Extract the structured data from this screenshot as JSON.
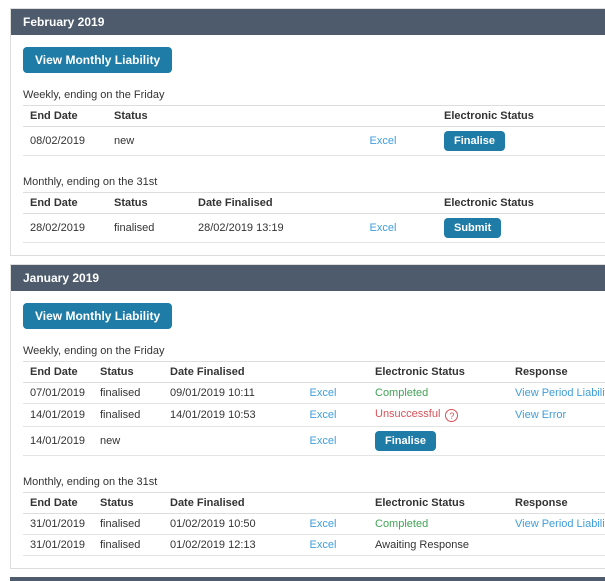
{
  "colors": {
    "header_bar": "#4d5b6c",
    "button": "#1e7ca6",
    "link": "#3f9edb",
    "success": "#42a356",
    "danger": "#d65158"
  },
  "sections": [
    {
      "title": "February 2019",
      "view_monthly_liability_label": "View Monthly Liability",
      "tables": [
        {
          "caption": "Weekly, ending on the Friday",
          "columns": [
            "End Date",
            "Status",
            "",
            "Electronic Status"
          ],
          "col_keys": [
            "end_date",
            "status",
            "excel",
            "electronic"
          ],
          "rows": [
            {
              "end_date": "08/02/2019",
              "status": "new",
              "excel": "Excel",
              "electronic": {
                "kind": "button",
                "label": "Finalise"
              }
            }
          ]
        },
        {
          "caption": "Monthly, ending on the 31st",
          "columns": [
            "End Date",
            "Status",
            "Date Finalised",
            "",
            "Electronic Status"
          ],
          "col_keys": [
            "end_date",
            "status",
            "date_finalised",
            "excel",
            "electronic"
          ],
          "rows": [
            {
              "end_date": "28/02/2019",
              "status": "finalised",
              "date_finalised": "28/02/2019 13:19",
              "excel": "Excel",
              "electronic": {
                "kind": "button",
                "label": "Submit"
              }
            }
          ]
        }
      ]
    },
    {
      "title": "January 2019",
      "view_monthly_liability_label": "View Monthly Liability",
      "tables": [
        {
          "caption": "Weekly, ending on the Friday",
          "columns": [
            "End Date",
            "Status",
            "Date Finalised",
            "",
            "Electronic Status",
            "Response"
          ],
          "col_keys": [
            "end_date",
            "status",
            "date_finalised",
            "excel",
            "electronic",
            "response"
          ],
          "rows": [
            {
              "end_date": "07/01/2019",
              "status": "finalised",
              "date_finalised": "09/01/2019 10:11",
              "excel": "Excel",
              "electronic": {
                "kind": "status",
                "label": "Completed",
                "tone": "success"
              },
              "response": {
                "kind": "link",
                "label": "View Period Liability"
              }
            },
            {
              "end_date": "14/01/2019",
              "status": "finalised",
              "date_finalised": "14/01/2019 10:53",
              "excel": "Excel",
              "electronic": {
                "kind": "status",
                "label": "Unsuccessful",
                "tone": "danger",
                "help": true,
                "help_glyph": "?"
              },
              "response": {
                "kind": "link",
                "label": "View Error"
              }
            },
            {
              "end_date": "14/01/2019",
              "status": "new",
              "date_finalised": "",
              "excel": "Excel",
              "electronic": {
                "kind": "button",
                "label": "Finalise"
              },
              "response": ""
            }
          ]
        },
        {
          "caption": "Monthly, ending on the 31st",
          "columns": [
            "End Date",
            "Status",
            "Date Finalised",
            "",
            "Electronic Status",
            "Response"
          ],
          "col_keys": [
            "end_date",
            "status",
            "date_finalised",
            "excel",
            "electronic",
            "response"
          ],
          "rows": [
            {
              "end_date": "31/01/2019",
              "status": "finalised",
              "date_finalised": "01/02/2019 10:50",
              "excel": "Excel",
              "electronic": {
                "kind": "status",
                "label": "Completed",
                "tone": "success"
              },
              "response": {
                "kind": "link",
                "label": "View Period Liability"
              }
            },
            {
              "end_date": "31/01/2019",
              "status": "finalised",
              "date_finalised": "01/02/2019 12:13",
              "excel": "Excel",
              "electronic": {
                "kind": "status",
                "label": "Awaiting Response",
                "tone": "plain"
              },
              "response": ""
            }
          ]
        }
      ]
    }
  ]
}
